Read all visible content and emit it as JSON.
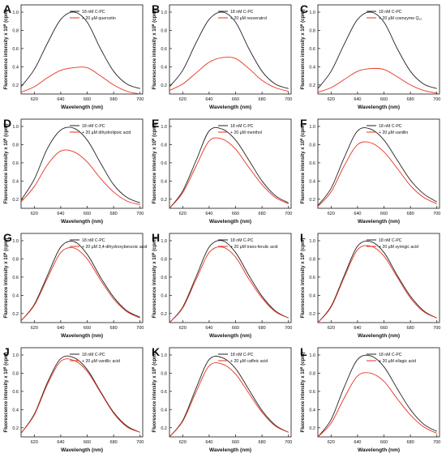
{
  "figure": {
    "common": {
      "xlabel": "Wavelength (nm)",
      "ylabel_prefix": "Fluorescence intensity x 10",
      "ylabel_exp": "6",
      "ylabel_suffix": " (cpm)",
      "control_label": "18 nM C-PC",
      "xticks": [
        620,
        640,
        660,
        680,
        700
      ],
      "yticks": [
        "0.2",
        "0.4",
        "0.6",
        "0.8",
        "1.0"
      ],
      "xlim": [
        610,
        702
      ],
      "ylim": [
        0.1,
        1.08
      ],
      "colors": {
        "control": "#222222",
        "treated": "#e8321e"
      }
    }
  },
  "chart_data": [
    {
      "type": "line",
      "panel": "A",
      "series": [
        {
          "name": "18 nM C-PC",
          "color": "#222222",
          "x": [
            610,
            620,
            630,
            640,
            650,
            660,
            670,
            680,
            690,
            700
          ],
          "y": [
            0.18,
            0.37,
            0.66,
            0.92,
            1.0,
            0.89,
            0.6,
            0.35,
            0.21,
            0.16
          ]
        },
        {
          "name": "+ 20  µM quercetin",
          "color": "#e8321e",
          "x": [
            610,
            620,
            630,
            640,
            650,
            660,
            670,
            680,
            690,
            700
          ],
          "y": [
            0.12,
            0.18,
            0.28,
            0.36,
            0.39,
            0.39,
            0.3,
            0.2,
            0.13,
            0.1
          ]
        }
      ]
    },
    {
      "type": "line",
      "panel": "B",
      "series": [
        {
          "name": "18 nM C-PC",
          "color": "#222222",
          "x": [
            610,
            620,
            630,
            640,
            650,
            660,
            670,
            680,
            690,
            700
          ],
          "y": [
            0.18,
            0.36,
            0.66,
            0.92,
            1.0,
            0.89,
            0.6,
            0.35,
            0.21,
            0.16
          ]
        },
        {
          "name": "+ 20  µM resveratrol",
          "color": "#e8321e",
          "x": [
            610,
            620,
            630,
            640,
            650,
            660,
            670,
            680,
            690,
            700
          ],
          "y": [
            0.14,
            0.21,
            0.33,
            0.45,
            0.5,
            0.49,
            0.38,
            0.25,
            0.17,
            0.13
          ]
        }
      ]
    },
    {
      "type": "line",
      "panel": "C",
      "series": [
        {
          "name": "18 nM C-PC",
          "color": "#222222",
          "x": [
            610,
            620,
            630,
            640,
            650,
            660,
            670,
            680,
            690,
            700
          ],
          "y": [
            0.16,
            0.35,
            0.65,
            0.92,
            1.0,
            0.89,
            0.6,
            0.35,
            0.21,
            0.16
          ]
        },
        {
          "name": "+ 20  µM coenzyme Q₁₀",
          "color": "#e8321e",
          "x": [
            610,
            620,
            630,
            640,
            650,
            660,
            670,
            680,
            690,
            700
          ],
          "y": [
            0.12,
            0.17,
            0.26,
            0.35,
            0.38,
            0.37,
            0.29,
            0.2,
            0.14,
            0.11
          ]
        }
      ]
    },
    {
      "type": "line",
      "panel": "D",
      "series": [
        {
          "name": "18 nM C-PC",
          "color": "#222222",
          "x": [
            610,
            620,
            630,
            640,
            650,
            660,
            670,
            680,
            690,
            700
          ],
          "y": [
            0.19,
            0.42,
            0.76,
            0.96,
            0.98,
            0.85,
            0.6,
            0.36,
            0.22,
            0.16
          ]
        },
        {
          "name": "+ 20  µM dihydrolipoic acid",
          "color": "#e8321e",
          "x": [
            610,
            620,
            630,
            640,
            650,
            660,
            670,
            680,
            690,
            700
          ],
          "y": [
            0.17,
            0.34,
            0.58,
            0.73,
            0.72,
            0.61,
            0.43,
            0.28,
            0.18,
            0.14
          ]
        }
      ]
    },
    {
      "type": "line",
      "panel": "E",
      "series": [
        {
          "name": "18 nM C-PC",
          "color": "#222222",
          "x": [
            610,
            620,
            630,
            640,
            650,
            660,
            670,
            680,
            690,
            700
          ],
          "y": [
            0.1,
            0.29,
            0.62,
            0.95,
            0.97,
            0.85,
            0.63,
            0.4,
            0.24,
            0.16
          ]
        },
        {
          "name": "+ 20  µM menthol",
          "color": "#e8321e",
          "x": [
            610,
            620,
            630,
            640,
            650,
            660,
            670,
            680,
            690,
            700
          ],
          "y": [
            0.1,
            0.27,
            0.56,
            0.84,
            0.86,
            0.75,
            0.55,
            0.36,
            0.22,
            0.15
          ]
        }
      ]
    },
    {
      "type": "line",
      "panel": "F",
      "series": [
        {
          "name": "18 nM C-PC",
          "color": "#222222",
          "x": [
            610,
            620,
            630,
            640,
            650,
            660,
            670,
            680,
            690,
            700
          ],
          "y": [
            0.13,
            0.32,
            0.66,
            0.95,
            0.97,
            0.85,
            0.63,
            0.41,
            0.26,
            0.17
          ]
        },
        {
          "name": "+ 20  µM vanillin",
          "color": "#e8321e",
          "x": [
            610,
            620,
            630,
            640,
            650,
            660,
            670,
            680,
            690,
            700
          ],
          "y": [
            0.12,
            0.28,
            0.57,
            0.8,
            0.82,
            0.72,
            0.54,
            0.35,
            0.22,
            0.15
          ]
        }
      ]
    },
    {
      "type": "line",
      "panel": "G",
      "series": [
        {
          "name": "18 nM C-PC",
          "color": "#222222",
          "x": [
            610,
            620,
            630,
            640,
            650,
            660,
            670,
            680,
            690,
            700
          ],
          "y": [
            0.12,
            0.3,
            0.62,
            0.93,
            0.99,
            0.85,
            0.6,
            0.38,
            0.23,
            0.16
          ]
        },
        {
          "name": "+ 20  µM 3,4-dihydroxybenzoic acid",
          "color": "#e8321e",
          "x": [
            610,
            620,
            630,
            640,
            650,
            660,
            670,
            680,
            690,
            700
          ],
          "y": [
            0.12,
            0.29,
            0.59,
            0.87,
            0.92,
            0.8,
            0.57,
            0.36,
            0.22,
            0.15
          ]
        }
      ]
    },
    {
      "type": "line",
      "panel": "H",
      "series": [
        {
          "name": "18 nM C-PC",
          "color": "#222222",
          "x": [
            610,
            620,
            630,
            640,
            650,
            660,
            670,
            680,
            690,
            700
          ],
          "y": [
            0.1,
            0.27,
            0.6,
            0.93,
            1.0,
            0.87,
            0.62,
            0.39,
            0.23,
            0.15
          ]
        },
        {
          "name": "+ 20  µM trans-ferulic acid",
          "color": "#e8321e",
          "x": [
            610,
            620,
            630,
            640,
            650,
            660,
            670,
            680,
            690,
            700
          ],
          "y": [
            0.1,
            0.26,
            0.57,
            0.87,
            0.93,
            0.82,
            0.58,
            0.37,
            0.22,
            0.15
          ]
        }
      ]
    },
    {
      "type": "line",
      "panel": "I",
      "series": [
        {
          "name": "18 nM C-PC",
          "color": "#222222",
          "x": [
            610,
            620,
            630,
            640,
            650,
            660,
            670,
            680,
            690,
            700
          ],
          "y": [
            0.1,
            0.28,
            0.62,
            0.94,
            0.99,
            0.87,
            0.62,
            0.39,
            0.23,
            0.15
          ]
        },
        {
          "name": "+ 20  µM syringic acid",
          "color": "#e8321e",
          "x": [
            610,
            620,
            630,
            640,
            650,
            660,
            670,
            680,
            690,
            700
          ],
          "y": [
            0.1,
            0.27,
            0.6,
            0.9,
            0.94,
            0.83,
            0.6,
            0.37,
            0.22,
            0.15
          ]
        }
      ]
    },
    {
      "type": "line",
      "panel": "J",
      "series": [
        {
          "name": "18 nM C-PC",
          "color": "#222222",
          "x": [
            610,
            620,
            630,
            640,
            650,
            660,
            670,
            680,
            690,
            700
          ],
          "y": [
            0.14,
            0.35,
            0.7,
            0.96,
            0.97,
            0.84,
            0.6,
            0.37,
            0.22,
            0.15
          ]
        },
        {
          "name": "+ 20  µM vanillic acid",
          "color": "#e8321e",
          "x": [
            610,
            620,
            630,
            640,
            650,
            660,
            670,
            680,
            690,
            700
          ],
          "y": [
            0.14,
            0.34,
            0.68,
            0.93,
            0.94,
            0.82,
            0.59,
            0.36,
            0.21,
            0.15
          ]
        }
      ]
    },
    {
      "type": "line",
      "panel": "K",
      "series": [
        {
          "name": "18 nM C-PC",
          "color": "#222222",
          "x": [
            610,
            620,
            630,
            640,
            650,
            660,
            670,
            680,
            690,
            700
          ],
          "y": [
            0.1,
            0.28,
            0.63,
            0.95,
            0.97,
            0.85,
            0.62,
            0.39,
            0.23,
            0.15
          ]
        },
        {
          "name": "+ 20  µM caffeic acid",
          "color": "#e8321e",
          "x": [
            610,
            620,
            630,
            640,
            650,
            660,
            670,
            680,
            690,
            700
          ],
          "y": [
            0.1,
            0.27,
            0.59,
            0.88,
            0.9,
            0.79,
            0.58,
            0.37,
            0.22,
            0.15
          ]
        }
      ]
    },
    {
      "type": "line",
      "panel": "L",
      "series": [
        {
          "name": "18 nM C-PC",
          "color": "#222222",
          "x": [
            610,
            620,
            630,
            640,
            650,
            660,
            670,
            680,
            690,
            700
          ],
          "y": [
            0.1,
            0.29,
            0.65,
            0.95,
            0.99,
            0.87,
            0.63,
            0.4,
            0.24,
            0.16
          ]
        },
        {
          "name": "+ 20  µM ellagic acid",
          "color": "#e8321e",
          "x": [
            610,
            620,
            630,
            640,
            650,
            660,
            670,
            680,
            690,
            700
          ],
          "y": [
            0.1,
            0.25,
            0.53,
            0.77,
            0.8,
            0.71,
            0.52,
            0.34,
            0.21,
            0.14
          ]
        }
      ]
    }
  ]
}
